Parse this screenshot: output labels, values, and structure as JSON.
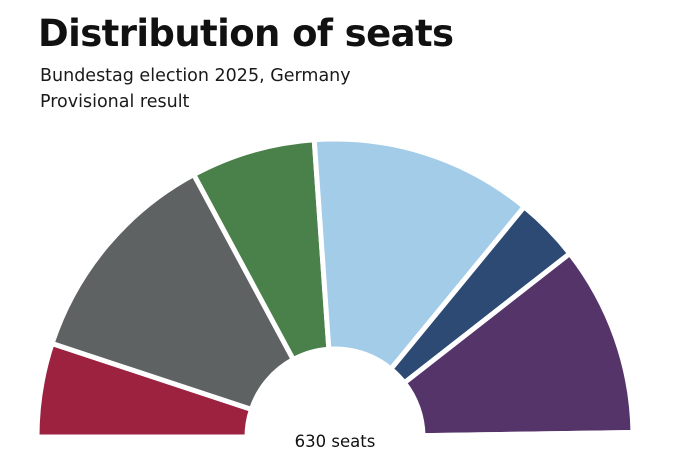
{
  "colors": {
    "background": "#ffffff",
    "separator": "#ffffff"
  },
  "chart_data": {
    "type": "pie",
    "subtype": "semicircle-parliament",
    "title": "Distribution of seats",
    "subtitle": "Bundestag election 2025, Germany",
    "note": "Provisional result",
    "total_label": "630 seats",
    "total": 630,
    "series": [
      {
        "key": "left",
        "value": 64,
        "color": "#9c2240"
      },
      {
        "key": "gray",
        "value": 152,
        "color": "#5e6263"
      },
      {
        "key": "green",
        "value": 85,
        "color": "#4a8049"
      },
      {
        "key": "lblue",
        "value": 152,
        "color": "#a3cce9"
      },
      {
        "key": "dblue",
        "value": 44,
        "color": "#2c4a73"
      },
      {
        "key": "purple",
        "value": 130,
        "color": "#55346a"
      },
      {
        "key": "yellow",
        "value": 3,
        "color": "#f2e200"
      }
    ]
  }
}
